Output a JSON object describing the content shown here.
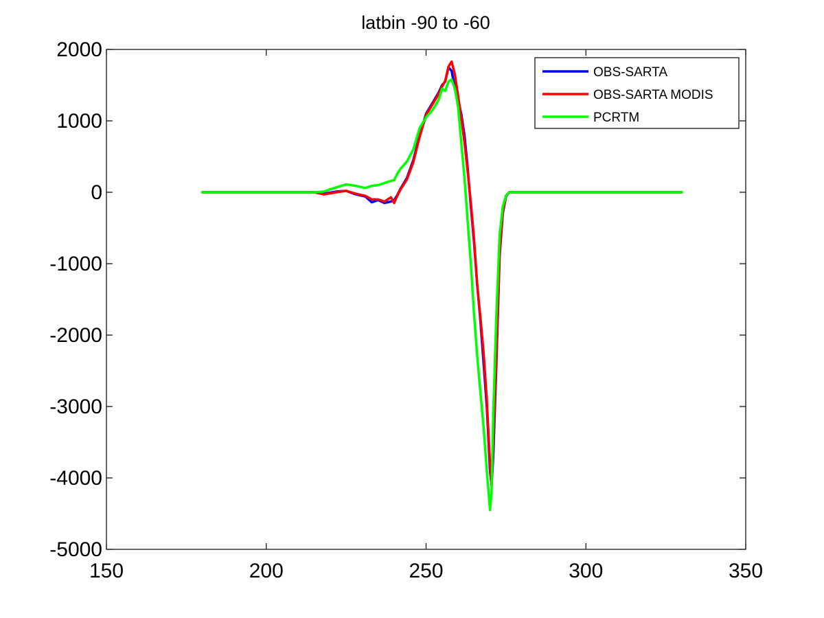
{
  "chart_data": {
    "type": "line",
    "title": "latbin -90  to -60",
    "xlabel": "",
    "ylabel": "",
    "xlim": [
      150,
      350
    ],
    "ylim": [
      -5000,
      2000
    ],
    "xticks": [
      150,
      200,
      250,
      300,
      350
    ],
    "yticks": [
      -5000,
      -4000,
      -3000,
      -2000,
      -1000,
      0,
      1000,
      2000
    ],
    "xtick_labels": [
      "150",
      "200",
      "250",
      "300",
      "350"
    ],
    "ytick_labels": [
      "-5000",
      "-4000",
      "-3000",
      "-2000",
      "-1000",
      "0",
      "1000",
      "2000"
    ],
    "grid": false,
    "legend_position": "top-right",
    "series": [
      {
        "name": "OBS-SARTA",
        "color": "#0000ff",
        "x": [
          180,
          200,
          215,
          218,
          222,
          225,
          228,
          231,
          233,
          235,
          237,
          239,
          240,
          241,
          242,
          244,
          246,
          248,
          250,
          252,
          254,
          255,
          256,
          257,
          258,
          259,
          260,
          261,
          262,
          263,
          264,
          265,
          266,
          267,
          268,
          269,
          270,
          270.5,
          271,
          272,
          273,
          274,
          275,
          276,
          277,
          280,
          300,
          330
        ],
        "y": [
          0,
          0,
          0,
          -20,
          10,
          20,
          -30,
          -60,
          -140,
          -110,
          -150,
          -130,
          -110,
          -40,
          50,
          200,
          450,
          800,
          1100,
          1250,
          1400,
          1500,
          1550,
          1750,
          1700,
          1450,
          1300,
          1100,
          800,
          350,
          -200,
          -700,
          -1300,
          -1800,
          -2400,
          -3000,
          -3900,
          -4100,
          -3700,
          -2400,
          -900,
          -300,
          -60,
          0,
          0,
          0,
          0,
          0
        ]
      },
      {
        "name": "OBS-SARTA MODIS",
        "color": "#ff0000",
        "x": [
          180,
          200,
          215,
          218,
          222,
          225,
          228,
          231,
          233,
          235,
          237,
          239,
          240,
          241,
          242,
          244,
          246,
          248,
          250,
          252,
          254,
          255,
          256,
          257,
          258,
          259,
          260,
          261,
          262,
          263,
          264,
          265,
          266,
          267,
          268,
          269,
          270,
          270.5,
          271,
          272,
          273,
          274,
          275,
          276,
          277,
          280,
          300,
          330
        ],
        "y": [
          0,
          0,
          0,
          -30,
          0,
          20,
          -20,
          -50,
          -100,
          -100,
          -130,
          -70,
          -150,
          -50,
          40,
          180,
          420,
          780,
          1080,
          1230,
          1380,
          1480,
          1560,
          1760,
          1830,
          1650,
          1350,
          1050,
          700,
          300,
          -150,
          -650,
          -1300,
          -1750,
          -2250,
          -2900,
          -3800,
          -4100,
          -3500,
          -2300,
          -850,
          -280,
          -50,
          0,
          0,
          0,
          0,
          0
        ]
      },
      {
        "name": "PCRTM",
        "color": "#00ff00",
        "x": [
          180,
          200,
          215,
          218,
          220,
          222,
          225,
          228,
          231,
          233,
          235,
          237,
          239,
          240,
          241,
          242,
          244,
          246,
          248,
          250,
          252,
          254,
          255,
          256,
          257,
          258,
          259,
          260,
          261,
          262,
          263,
          264,
          265,
          266,
          267,
          268,
          269,
          270,
          270.5,
          271,
          272,
          273,
          274,
          275,
          276,
          280,
          300,
          330
        ],
        "y": [
          0,
          0,
          0,
          10,
          40,
          70,
          110,
          90,
          60,
          90,
          100,
          130,
          160,
          170,
          260,
          330,
          430,
          600,
          900,
          1050,
          1150,
          1300,
          1450,
          1420,
          1550,
          1580,
          1450,
          1200,
          700,
          200,
          -400,
          -1000,
          -1700,
          -2300,
          -2800,
          -3300,
          -3900,
          -4450,
          -4200,
          -3100,
          -1700,
          -600,
          -200,
          -50,
          0,
          0,
          0,
          0
        ]
      }
    ]
  }
}
